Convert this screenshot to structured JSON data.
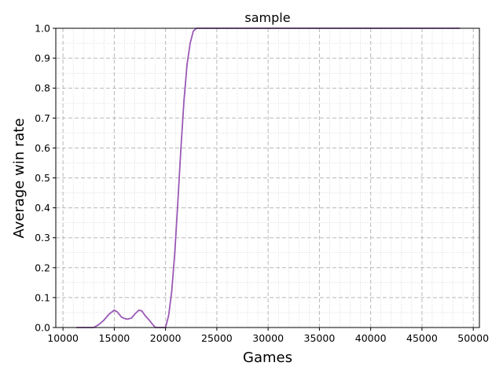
{
  "chart_data": {
    "type": "line",
    "title": "sample",
    "xlabel": "Games",
    "ylabel": "Average win rate",
    "xlim": [
      9300,
      50600
    ],
    "ylim": [
      0.0,
      1.0
    ],
    "xticks": [
      10000,
      15000,
      20000,
      25000,
      30000,
      35000,
      40000,
      45000,
      50000
    ],
    "yticks": [
      0.0,
      0.1,
      0.2,
      0.3,
      0.4,
      0.5,
      0.6,
      0.7,
      0.8,
      0.9,
      1.0
    ],
    "yticklabels": [
      "0.0",
      "0.1",
      "0.2",
      "0.3",
      "0.4",
      "0.5",
      "0.6",
      "0.7",
      "0.8",
      "0.9",
      "1.0"
    ],
    "grid": true,
    "series": [
      {
        "color": "#9b59b6",
        "x": [
          11300,
          13000,
          13500,
          14000,
          14500,
          15000,
          15300,
          15700,
          16000,
          16300,
          16700,
          17000,
          17400,
          17700,
          18000,
          18400,
          18700,
          19000,
          19400,
          20000,
          20300,
          20600,
          20900,
          21200,
          21500,
          21800,
          22100,
          22400,
          22700,
          23000,
          23300,
          25000,
          30000,
          35000,
          40000,
          45000,
          48700
        ],
        "values": [
          0.0,
          0.0,
          0.01,
          0.025,
          0.045,
          0.058,
          0.052,
          0.035,
          0.03,
          0.028,
          0.032,
          0.045,
          0.058,
          0.055,
          0.04,
          0.025,
          0.012,
          0.0,
          0.0,
          0.0,
          0.04,
          0.12,
          0.25,
          0.42,
          0.6,
          0.76,
          0.88,
          0.95,
          0.99,
          1.0,
          1.0,
          1.0,
          1.0,
          1.0,
          1.0,
          1.0,
          1.0
        ]
      }
    ]
  }
}
